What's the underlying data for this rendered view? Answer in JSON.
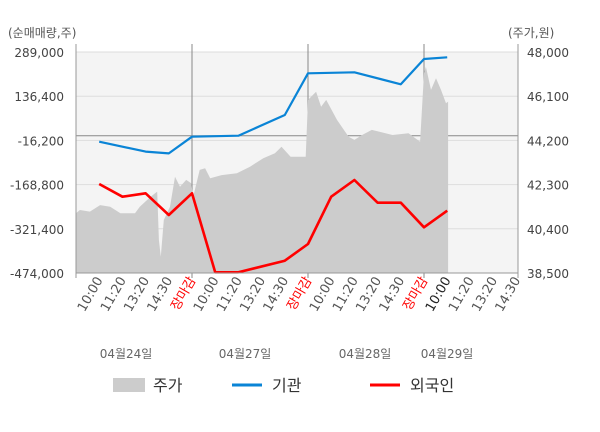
{
  "chart_data": {
    "type": "line",
    "left_axis_title": "(순매매량,주)",
    "right_axis_title": "(주가,원)",
    "left_ticks": [
      "289,000",
      "136,400",
      "-16,200",
      "-168,800",
      "-321,400",
      "-474,000"
    ],
    "right_ticks": [
      "48,000",
      "46,100",
      "44,200",
      "42,300",
      "40,400",
      "38,500"
    ],
    "left_range": [
      -474000,
      289000
    ],
    "right_range": [
      38500,
      48000
    ],
    "days": [
      "04월24일",
      "04월27일",
      "04월28일",
      "04월29일"
    ],
    "times": [
      "10:00",
      "11:20",
      "13:20",
      "14:30"
    ],
    "close_label": "장마감",
    "x_labels": [
      {
        "text": "10:00",
        "day": 0,
        "time": "10:00"
      },
      {
        "text": "11:20",
        "day": 0,
        "time": "11:20"
      },
      {
        "text": "13:20",
        "day": 0,
        "time": "13:20"
      },
      {
        "text": "14:30",
        "day": 0,
        "time": "14:30"
      },
      {
        "text": "장마감",
        "day": 0,
        "time": "15:30",
        "close": true
      },
      {
        "text": "10:00",
        "day": 1,
        "time": "10:00"
      },
      {
        "text": "11:20",
        "day": 1,
        "time": "11:20"
      },
      {
        "text": "13:20",
        "day": 1,
        "time": "13:20"
      },
      {
        "text": "14:30",
        "day": 1,
        "time": "14:30"
      },
      {
        "text": "장마감",
        "day": 1,
        "time": "15:30",
        "close": true
      },
      {
        "text": "10:00",
        "day": 2,
        "time": "10:00"
      },
      {
        "text": "11:20",
        "day": 2,
        "time": "11:20"
      },
      {
        "text": "13:20",
        "day": 2,
        "time": "13:20"
      },
      {
        "text": "14:30",
        "day": 2,
        "time": "14:30"
      },
      {
        "text": "장마감",
        "day": 2,
        "time": "15:30",
        "close": true
      },
      {
        "text": "10:00",
        "day": 3,
        "time": "10:00",
        "current": true
      },
      {
        "text": "11:20",
        "day": 3,
        "time": "11:20"
      },
      {
        "text": "13:20",
        "day": 3,
        "time": "13:20"
      },
      {
        "text": "14:30",
        "day": 3,
        "time": "14:30"
      }
    ],
    "grid": true,
    "legend_placement": "bottom",
    "series": [
      {
        "name": "주가",
        "type": "area",
        "axis": "right",
        "color": "#cccccc",
        "points": [
          [
            0,
            "09:00",
            41070
          ],
          [
            0,
            "09:10",
            41210
          ],
          [
            0,
            "09:36",
            41140
          ],
          [
            0,
            "10:03",
            41420
          ],
          [
            0,
            "10:38",
            41350
          ],
          [
            0,
            "11:13",
            41070
          ],
          [
            0,
            "12:25",
            41070
          ],
          [
            0,
            "12:50",
            41350
          ],
          [
            0,
            "13:35",
            41780
          ],
          [
            0,
            "13:55",
            42000
          ],
          [
            0,
            "14:00",
            39920
          ],
          [
            0,
            "14:06",
            39200
          ],
          [
            0,
            "14:15",
            40780
          ],
          [
            0,
            "14:33",
            41350
          ],
          [
            0,
            "14:46",
            42640
          ],
          [
            0,
            "14:59",
            42210
          ],
          [
            0,
            "15:15",
            42500
          ],
          [
            0,
            "15:28",
            42360
          ],
          [
            1,
            "09:03",
            41780
          ],
          [
            1,
            "09:20",
            42930
          ],
          [
            1,
            "09:34",
            43000
          ],
          [
            1,
            "09:47",
            42570
          ],
          [
            1,
            "10:22",
            42710
          ],
          [
            1,
            "11:15",
            42790
          ],
          [
            1,
            "12:20",
            43070
          ],
          [
            1,
            "13:25",
            43430
          ],
          [
            1,
            "14:00",
            43650
          ],
          [
            1,
            "14:20",
            43930
          ],
          [
            1,
            "14:45",
            43500
          ],
          [
            1,
            "15:24",
            43500
          ],
          [
            2,
            "09:00",
            45940
          ],
          [
            2,
            "09:21",
            46290
          ],
          [
            2,
            "09:34",
            45650
          ],
          [
            2,
            "09:47",
            45940
          ],
          [
            2,
            "10:20",
            45080
          ],
          [
            2,
            "11:00",
            44360
          ],
          [
            2,
            "11:20",
            44220
          ],
          [
            2,
            "12:00",
            44430
          ],
          [
            2,
            "12:50",
            44650
          ],
          [
            2,
            "14:05",
            44430
          ],
          [
            2,
            "14:50",
            44510
          ],
          [
            2,
            "15:20",
            44140
          ],
          [
            3,
            "09:00",
            47090
          ],
          [
            3,
            "09:05",
            47370
          ],
          [
            3,
            "09:18",
            46370
          ],
          [
            3,
            "09:31",
            46870
          ],
          [
            3,
            "09:44",
            46370
          ],
          [
            3,
            "09:57",
            45800
          ],
          [
            3,
            "10:03",
            45870
          ]
        ]
      },
      {
        "name": "기관",
        "type": "line",
        "axis": "left",
        "color": "#0a84d6",
        "points": [
          [
            0,
            "10:00",
            -20700
          ],
          [
            0,
            "13:20",
            -55000
          ],
          [
            0,
            "14:30",
            -61000
          ],
          [
            0,
            "15:30",
            -3400
          ],
          [
            1,
            "11:20",
            0
          ],
          [
            1,
            "14:30",
            71500
          ],
          [
            1,
            "15:30",
            215500
          ],
          [
            2,
            "11:20",
            219000
          ],
          [
            2,
            "14:30",
            177500
          ],
          [
            2,
            "15:30",
            265000
          ],
          [
            3,
            "10:00",
            270700
          ]
        ]
      },
      {
        "name": "외국인",
        "type": "line",
        "axis": "left",
        "color": "#ff0000",
        "points": [
          [
            0,
            "10:00",
            -166700
          ],
          [
            0,
            "11:20",
            -210600
          ],
          [
            0,
            "13:20",
            -198800
          ],
          [
            0,
            "14:30",
            -273800
          ],
          [
            0,
            "15:30",
            -198800
          ],
          [
            1,
            "10:00",
            -471600
          ],
          [
            1,
            "11:20",
            -471600
          ],
          [
            1,
            "14:30",
            -431500
          ],
          [
            1,
            "15:30",
            -373900
          ],
          [
            2,
            "10:00",
            -210600
          ],
          [
            2,
            "11:20",
            -152900
          ],
          [
            2,
            "13:20",
            -231300
          ],
          [
            2,
            "14:30",
            -231300
          ],
          [
            2,
            "15:30",
            -316200
          ],
          [
            3,
            "10:00",
            -258900
          ]
        ]
      }
    ]
  }
}
